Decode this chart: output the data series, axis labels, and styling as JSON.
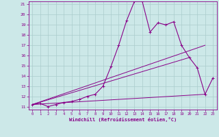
{
  "xlabel": "Windchill (Refroidissement éolien,°C)",
  "xlim": [
    -0.5,
    23.5
  ],
  "ylim": [
    10.7,
    21.3
  ],
  "yticks": [
    11,
    12,
    13,
    14,
    15,
    16,
    17,
    18,
    19,
    20,
    21
  ],
  "xticks": [
    0,
    1,
    2,
    3,
    4,
    5,
    6,
    7,
    8,
    9,
    10,
    11,
    12,
    13,
    14,
    15,
    16,
    17,
    18,
    19,
    20,
    21,
    22,
    23
  ],
  "background_color": "#cce8e8",
  "line_color": "#880088",
  "grid_color": "#aacccc",
  "series": {
    "main": {
      "x": [
        0,
        1,
        2,
        3,
        4,
        5,
        6,
        7,
        8,
        9,
        10,
        11,
        12,
        13,
        14,
        15,
        16,
        17,
        18,
        19,
        20,
        21,
        22,
        23
      ],
      "y": [
        11.2,
        11.3,
        11.0,
        11.2,
        11.4,
        11.5,
        11.7,
        12.0,
        12.2,
        13.0,
        14.9,
        17.0,
        19.4,
        21.3,
        21.3,
        18.3,
        19.2,
        19.0,
        19.3,
        17.0,
        15.8,
        14.8,
        12.2,
        13.8
      ]
    },
    "line1": {
      "x": [
        0,
        22
      ],
      "y": [
        11.2,
        17.0
      ]
    },
    "line2": {
      "x": [
        0,
        20
      ],
      "y": [
        11.2,
        15.8
      ]
    },
    "line3": {
      "x": [
        0,
        22
      ],
      "y": [
        11.2,
        12.2
      ]
    }
  }
}
